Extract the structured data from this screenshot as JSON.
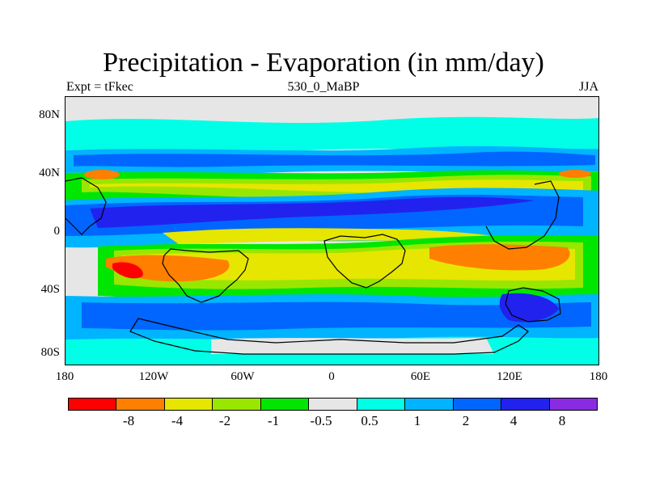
{
  "title": "Precipitation - Evaporation (in mm/day)",
  "subtitle_left": "Expt = tFkec",
  "subtitle_center": "530_0_MaBP",
  "subtitle_right": "JJA",
  "map": {
    "projection": "cylindrical-equidistant",
    "lon_range": [
      -180,
      180
    ],
    "lat_range": [
      -90,
      90
    ],
    "field": "P-E (mm/day)",
    "continent_outlines": true
  },
  "axes": {
    "y_ticks": [
      {
        "lat": 80,
        "label": "80N"
      },
      {
        "lat": 40,
        "label": "40N"
      },
      {
        "lat": 0,
        "label": "0"
      },
      {
        "lat": -40,
        "label": "40S"
      },
      {
        "lat": -80,
        "label": "80S"
      }
    ],
    "x_ticks": [
      {
        "lon": -180,
        "label": "180"
      },
      {
        "lon": -120,
        "label": "120W"
      },
      {
        "lon": -60,
        "label": "60W"
      },
      {
        "lon": 0,
        "label": "0"
      },
      {
        "lon": 60,
        "label": "60E"
      },
      {
        "lon": 120,
        "label": "120E"
      },
      {
        "lon": 180,
        "label": "180"
      }
    ]
  },
  "colorbar": {
    "colors": [
      "#ff0000",
      "#ff7f00",
      "#e6e600",
      "#99e600",
      "#00e600",
      "#e6e6e6",
      "#00ffe6",
      "#00b4ff",
      "#0066ff",
      "#2222ee",
      "#8a2be2"
    ],
    "labels": [
      "-8",
      "-4",
      "-2",
      "-1",
      "-0.5",
      "0.5",
      "1",
      "2",
      "4",
      "8"
    ]
  }
}
